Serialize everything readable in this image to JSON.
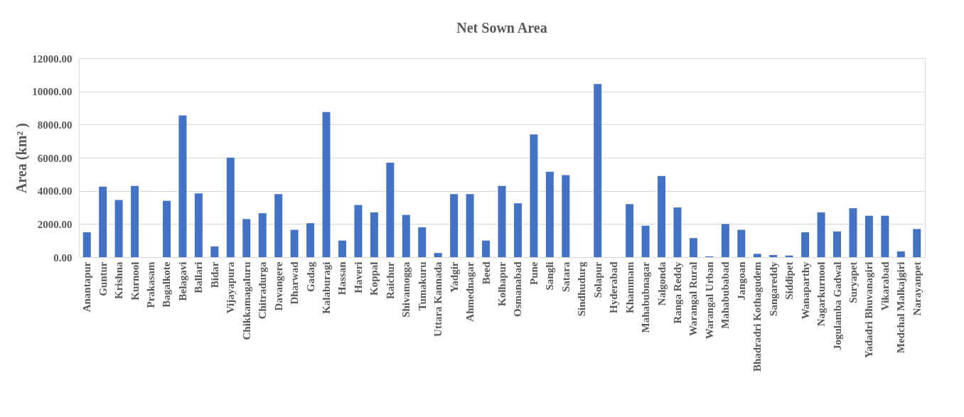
{
  "chart_data": {
    "type": "bar",
    "title": "Net Sown Area",
    "ylabel": "Area (km² )",
    "categories": [
      "Anantapur",
      "Guntur",
      "Krishna",
      "Kurnool",
      "Prakasam",
      "Bagalkote",
      "Belagavi",
      "Ballari",
      "Bidar",
      "Vijayapura",
      "Chikkamagaluru",
      "Chitradurga",
      "Davangere",
      "Dharwad",
      "Gadag",
      "Kalaburagi",
      "Hassan",
      "Haveri",
      "Koppal",
      "Raichur",
      "Shivamogga",
      "Tumakuru",
      "Uttara Kannada",
      "Yadgir",
      "Ahmednagar",
      "Beed",
      "Kolhapur",
      "Osmanabad",
      "Pune",
      "Sangli",
      "Satara",
      "Sindhudurg",
      "Solapur",
      "Hyderabad",
      "Khammam",
      "Mahabubnagar",
      "Nalgonda",
      "Ranga Reddy",
      "Warangal Rural",
      "Warangal Urban",
      "Mahabubabad",
      "Jangoan",
      "Bhadradri Kothagudem",
      "Sangareddy",
      "Siddipet",
      "Wanaparthy",
      "Nagarkurnool",
      "Jogulamba Gadwal",
      "Suryapet",
      "Yadadri Bhuvanagiri",
      "Vikarabad",
      "Medchal Malkajgiri",
      "Narayanpet"
    ],
    "values": [
      1500,
      4250,
      3450,
      4300,
      null,
      3400,
      8550,
      3850,
      650,
      6000,
      2300,
      2650,
      3800,
      1650,
      2050,
      8750,
      1000,
      3150,
      2700,
      5700,
      2550,
      1800,
      250,
      3800,
      3800,
      1000,
      4300,
      3250,
      7400,
      5150,
      4950,
      null,
      10450,
      null,
      3200,
      1900,
      4900,
      3000,
      1150,
      50,
      2000,
      1650,
      200,
      130,
      100,
      1500,
      2700,
      1550,
      2950,
      2500,
      2500,
      350,
      1700
    ],
    "color": "#4472c4",
    "ylim": [
      0,
      12000
    ],
    "yticks": [
      {
        "value": 0,
        "label": "0.00"
      },
      {
        "value": 2000,
        "label": "2000.00"
      },
      {
        "value": 4000,
        "label": "4000.00"
      },
      {
        "value": 6000,
        "label": "6000.00"
      },
      {
        "value": 8000,
        "label": "8000.00"
      },
      {
        "value": 10000,
        "label": "10000.00"
      },
      {
        "value": 12000,
        "label": "12000.00"
      }
    ],
    "grid": "y"
  }
}
